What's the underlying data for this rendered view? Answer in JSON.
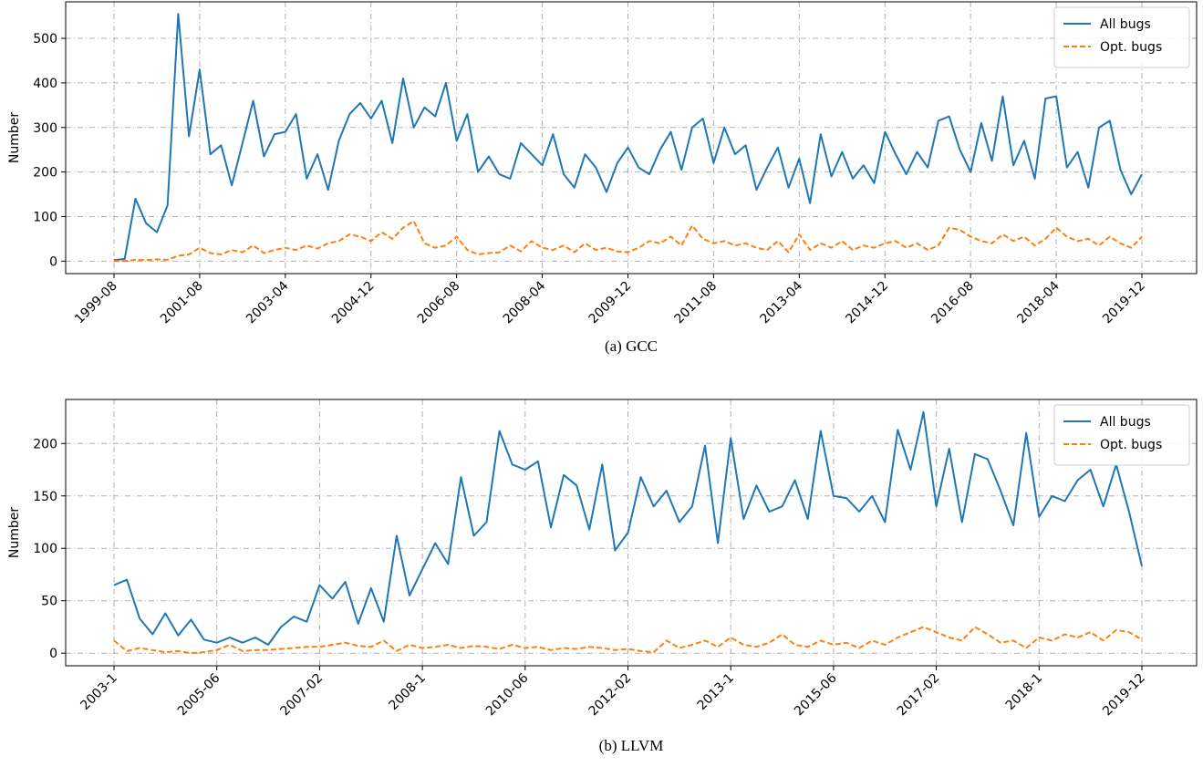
{
  "chart_data": [
    {
      "type": "line",
      "caption": "(a) GCC",
      "ylabel": "Number",
      "grid": true,
      "legend": "upper right",
      "categories": [
        "1999-08",
        null,
        null,
        null,
        null,
        null,
        null,
        null,
        "2001-08",
        null,
        null,
        null,
        null,
        null,
        null,
        null,
        "2003-04",
        null,
        null,
        null,
        null,
        null,
        null,
        null,
        "2004-12",
        null,
        null,
        null,
        null,
        null,
        null,
        null,
        "2006-08",
        null,
        null,
        null,
        null,
        null,
        null,
        null,
        "2008-04",
        null,
        null,
        null,
        null,
        null,
        null,
        null,
        "2009-12",
        null,
        null,
        null,
        null,
        null,
        null,
        null,
        "2011-08",
        null,
        null,
        null,
        null,
        null,
        null,
        null,
        "2013-04",
        null,
        null,
        null,
        null,
        null,
        null,
        null,
        "2014-12",
        null,
        null,
        null,
        null,
        null,
        null,
        null,
        "2016-08",
        null,
        null,
        null,
        null,
        null,
        null,
        null,
        "2018-04",
        null,
        null,
        null,
        null,
        null,
        null,
        null,
        "2019-12"
      ],
      "ylim": [
        -28,
        582
      ],
      "yticks": [
        0,
        100,
        200,
        300,
        400,
        500
      ],
      "series": [
        {
          "name": "All bugs",
          "color": "#1f77b4",
          "linestyle": "solid",
          "values": [
            2,
            5,
            140,
            85,
            65,
            125,
            555,
            280,
            430,
            240,
            260,
            170,
            265,
            360,
            235,
            285,
            290,
            330,
            185,
            240,
            160,
            270,
            330,
            355,
            320,
            360,
            265,
            410,
            300,
            345,
            325,
            400,
            270,
            330,
            200,
            235,
            195,
            185,
            265,
            240,
            215,
            285,
            195,
            165,
            240,
            210,
            155,
            220,
            255,
            210,
            195,
            250,
            290,
            205,
            300,
            320,
            220,
            300,
            240,
            260,
            160,
            210,
            255,
            165,
            230,
            130,
            285,
            190,
            245,
            185,
            215,
            175,
            290,
            240,
            195,
            245,
            210,
            315,
            325,
            250,
            200,
            310,
            225,
            370,
            215,
            270,
            185,
            365,
            370,
            210,
            245,
            165,
            300,
            315,
            205,
            150,
            195
          ]
        },
        {
          "name": "Opt. bugs",
          "color": "#ff7f0e",
          "linestyle": "dashed",
          "values": [
            0,
            0,
            3,
            2,
            4,
            3,
            12,
            15,
            30,
            18,
            15,
            25,
            20,
            35,
            18,
            25,
            30,
            25,
            35,
            28,
            40,
            45,
            60,
            55,
            45,
            65,
            50,
            75,
            90,
            40,
            30,
            35,
            55,
            25,
            15,
            18,
            20,
            35,
            22,
            45,
            30,
            25,
            35,
            20,
            40,
            25,
            30,
            22,
            20,
            30,
            45,
            40,
            55,
            35,
            80,
            50,
            40,
            45,
            35,
            40,
            30,
            25,
            45,
            20,
            60,
            25,
            40,
            30,
            45,
            25,
            35,
            30,
            40,
            45,
            30,
            40,
            25,
            35,
            75,
            70,
            55,
            45,
            40,
            60,
            45,
            55,
            35,
            50,
            75,
            55,
            45,
            50,
            35,
            55,
            40,
            30,
            55
          ]
        }
      ]
    },
    {
      "type": "line",
      "caption": "(b) LLVM",
      "ylabel": "Number",
      "grid": true,
      "legend": "upper right",
      "categories": [
        "2003-1",
        null,
        null,
        null,
        null,
        null,
        null,
        null,
        "2005-06",
        null,
        null,
        null,
        null,
        null,
        null,
        null,
        "2007-02",
        null,
        null,
        null,
        null,
        null,
        null,
        null,
        "2008-1",
        null,
        null,
        null,
        null,
        null,
        null,
        null,
        "2010-06",
        null,
        null,
        null,
        null,
        null,
        null,
        null,
        "2012-02",
        null,
        null,
        null,
        null,
        null,
        null,
        null,
        "2013-1",
        null,
        null,
        null,
        null,
        null,
        null,
        null,
        "2015-06",
        null,
        null,
        null,
        null,
        null,
        null,
        null,
        "2017-02",
        null,
        null,
        null,
        null,
        null,
        null,
        null,
        "2018-1",
        null,
        null,
        null,
        null,
        null,
        null,
        null,
        "2019-12"
      ],
      "ylim": [
        -12,
        242
      ],
      "yticks": [
        0,
        50,
        100,
        150,
        200
      ],
      "series": [
        {
          "name": "All bugs",
          "color": "#1f77b4",
          "linestyle": "solid",
          "values": [
            65,
            70,
            33,
            18,
            38,
            17,
            32,
            13,
            10,
            15,
            10,
            15,
            8,
            25,
            35,
            30,
            65,
            52,
            68,
            28,
            62,
            30,
            112,
            55,
            80,
            105,
            85,
            168,
            112,
            125,
            212,
            180,
            175,
            183,
            120,
            170,
            160,
            118,
            180,
            98,
            115,
            168,
            140,
            155,
            125,
            140,
            198,
            105,
            205,
            128,
            160,
            135,
            140,
            165,
            128,
            212,
            150,
            148,
            135,
            150,
            125,
            213,
            175,
            230,
            140,
            195,
            125,
            190,
            185,
            155,
            122,
            210,
            130,
            150,
            145,
            165,
            175,
            140,
            180,
            135,
            83
          ]
        },
        {
          "name": "Opt. bugs",
          "color": "#ff7f0e",
          "linestyle": "dashed",
          "values": [
            12,
            2,
            5,
            3,
            1,
            2,
            0,
            1,
            3,
            8,
            2,
            3,
            3,
            4,
            5,
            6,
            6,
            8,
            10,
            7,
            6,
            12,
            2,
            8,
            5,
            6,
            8,
            5,
            7,
            6,
            4,
            8,
            5,
            6,
            3,
            5,
            4,
            6,
            5,
            3,
            4,
            2,
            1,
            12,
            5,
            8,
            12,
            6,
            15,
            8,
            6,
            10,
            18,
            8,
            6,
            12,
            8,
            10,
            5,
            12,
            8,
            15,
            20,
            25,
            20,
            15,
            12,
            25,
            18,
            10,
            12,
            5,
            15,
            12,
            18,
            15,
            20,
            12,
            22,
            20,
            13
          ]
        }
      ]
    }
  ]
}
